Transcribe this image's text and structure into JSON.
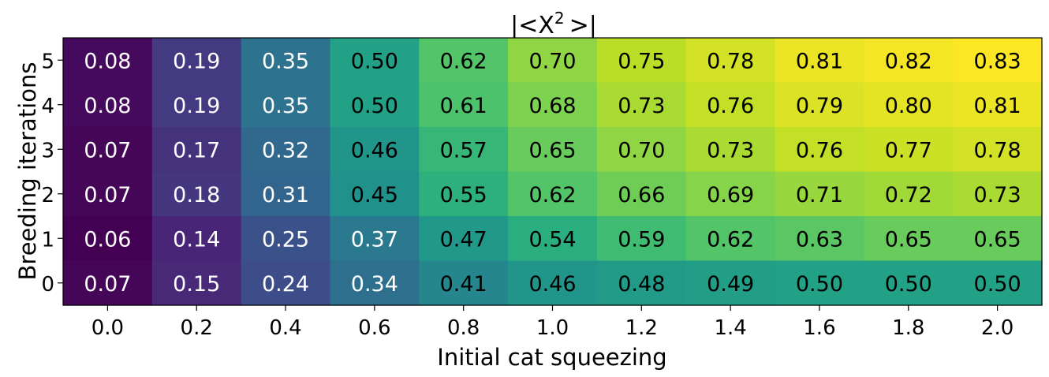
{
  "chart_data": {
    "type": "heatmap",
    "title_main": "|<X",
    "title_sup": "2",
    "title_end": ">|",
    "xlabel": "Initial cat squeezing",
    "ylabel": "Breeding iterations",
    "x": [
      "0.0",
      "0.2",
      "0.4",
      "0.6",
      "0.8",
      "1.0",
      "1.2",
      "1.4",
      "1.6",
      "1.8",
      "2.0"
    ],
    "y": [
      "5",
      "4",
      "3",
      "2",
      "1",
      "0"
    ],
    "colormap": "viridis",
    "vmin": 0.06,
    "vmax": 0.83,
    "values": [
      [
        0.08,
        0.19,
        0.35,
        0.5,
        0.62,
        0.7,
        0.75,
        0.78,
        0.81,
        0.82,
        0.83
      ],
      [
        0.08,
        0.19,
        0.35,
        0.5,
        0.61,
        0.68,
        0.73,
        0.76,
        0.79,
        0.8,
        0.81
      ],
      [
        0.07,
        0.17,
        0.32,
        0.46,
        0.57,
        0.65,
        0.7,
        0.73,
        0.76,
        0.77,
        0.78
      ],
      [
        0.07,
        0.18,
        0.31,
        0.45,
        0.55,
        0.62,
        0.66,
        0.69,
        0.71,
        0.72,
        0.73
      ],
      [
        0.06,
        0.14,
        0.25,
        0.37,
        0.47,
        0.54,
        0.59,
        0.62,
        0.63,
        0.65,
        0.65
      ],
      [
        0.07,
        0.15,
        0.24,
        0.34,
        0.41,
        0.46,
        0.48,
        0.49,
        0.5,
        0.5,
        0.5
      ]
    ],
    "label_colors": {
      "light": "#ffffff",
      "dark": "#000000"
    },
    "axis_color": "#000000"
  }
}
